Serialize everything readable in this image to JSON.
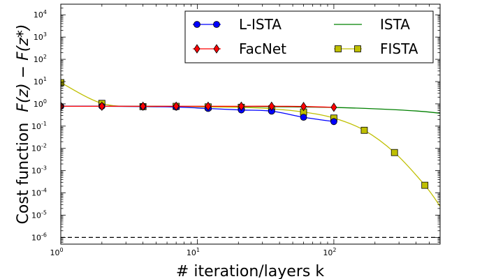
{
  "chart_data": {
    "type": "line",
    "xscale": "log",
    "yscale": "log",
    "xlim": [
      1,
      600
    ],
    "ylim": [
      5e-07,
      30000
    ],
    "xlabel": "# iteration/layers k",
    "ylabel_text": "Cost function",
    "ylabel_math": "F(z) − F(z*)",
    "xticks": [
      {
        "value": 1,
        "base": "10",
        "exp": "0"
      },
      {
        "value": 10,
        "base": "10",
        "exp": "1"
      },
      {
        "value": 100,
        "base": "10",
        "exp": "2"
      }
    ],
    "yticks": [
      {
        "value": 1e-06,
        "base": "10",
        "exp": "-6"
      },
      {
        "value": 1e-05,
        "base": "10",
        "exp": "-5"
      },
      {
        "value": 0.0001,
        "base": "10",
        "exp": "-4"
      },
      {
        "value": 0.001,
        "base": "10",
        "exp": "-3"
      },
      {
        "value": 0.01,
        "base": "10",
        "exp": "-2"
      },
      {
        "value": 0.1,
        "base": "10",
        "exp": "-1"
      },
      {
        "value": 1,
        "base": "10",
        "exp": "0"
      },
      {
        "value": 10,
        "base": "10",
        "exp": "1"
      },
      {
        "value": 100,
        "base": "10",
        "exp": "2"
      },
      {
        "value": 1000,
        "base": "10",
        "exp": "3"
      },
      {
        "value": 10000,
        "base": "10",
        "exp": "4"
      }
    ],
    "reference_line": {
      "y": 1e-06,
      "style": "dashed",
      "color": "#000000"
    },
    "legend_position": "top-right",
    "series": [
      {
        "name": "ISTA",
        "color": "#008000",
        "marker": "none",
        "x": [
          1,
          2,
          5,
          10,
          20,
          50,
          100,
          200,
          400,
          600
        ],
        "y": [
          0.78,
          0.78,
          0.775,
          0.77,
          0.76,
          0.73,
          0.69,
          0.6,
          0.48,
          0.38
        ]
      },
      {
        "name": "FISTA",
        "color": "#bfbf00",
        "marker": "square",
        "x": [
          1,
          2,
          4,
          7,
          12,
          21,
          35,
          60,
          100,
          167,
          278,
          464,
          600
        ],
        "y": [
          9.0,
          1.05,
          0.75,
          0.77,
          0.73,
          0.7,
          0.6,
          0.43,
          0.23,
          0.065,
          0.0065,
          0.00022,
          2.5e-05
        ],
        "marker_x": [
          1,
          2,
          4,
          7,
          12,
          21,
          35,
          60,
          100,
          167,
          278,
          464
        ]
      },
      {
        "name": "L-ISTA",
        "color": "#0000ff",
        "marker": "circle",
        "x": [
          1,
          2,
          4,
          7,
          12,
          21,
          35,
          60,
          100
        ],
        "y": [
          0.78,
          0.78,
          0.76,
          0.72,
          0.62,
          0.53,
          0.47,
          0.25,
          0.16
        ]
      },
      {
        "name": "FacNet",
        "color": "#ff0000",
        "marker": "diamond",
        "x": [
          1,
          2,
          4,
          7,
          12,
          21,
          35,
          60,
          100
        ],
        "y": [
          0.78,
          0.78,
          0.78,
          0.78,
          0.78,
          0.78,
          0.78,
          0.76,
          0.7
        ]
      }
    ],
    "legend_order": [
      "L-ISTA",
      "ISTA",
      "FacNet",
      "FISTA"
    ]
  }
}
